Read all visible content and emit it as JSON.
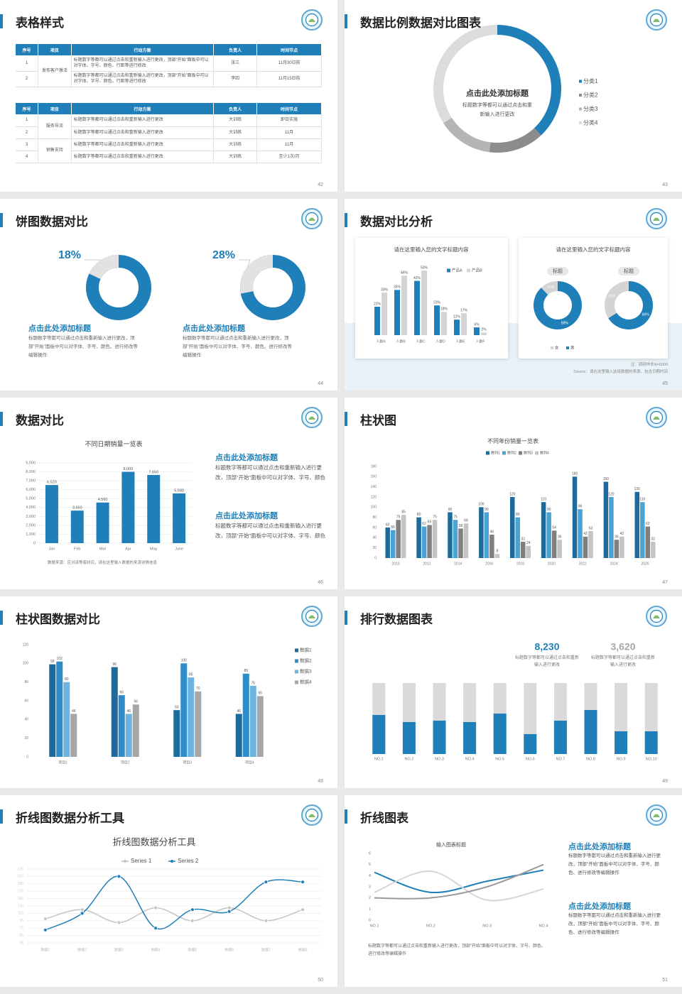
{
  "slides": [
    {
      "title": "表格样式",
      "page": 42,
      "tables": [
        {
          "header": [
            "序号",
            "项目",
            "行动方案",
            "负责人",
            "时间节点"
          ],
          "groups": [
            {
              "item": "发布客户激活",
              "rows": [
                [
                  1,
                  "标题数字等都可以通过点击和重新输入进行更改，顶部“开始”面板中可以对字体、字号、颜色、行距等进行修改",
                  "张三",
                  "11月30日前"
                ],
                [
                  2,
                  "标题数字等都可以通过点击和重新输入进行更改，顶部“开始”面板中可以对字体、字号、颜色、行距等进行修改",
                  "李四",
                  "11月15日前"
                ]
              ]
            }
          ]
        },
        {
          "header": [
            "序号",
            "项目",
            "行动方案",
            "负责人",
            "时间节点"
          ],
          "groups": [
            {
              "item": "服务导流",
              "rows": [
                [
                  1,
                  "标题数字等都可以通过点击和重新输入进行更改",
                  "大训练",
                  "即日实施"
                ],
                [
                  2,
                  "标题数字等都可以通过点击和重新输入进行更改",
                  "大训练",
                  "11月"
                ]
              ]
            },
            {
              "item": "销售支持",
              "rows": [
                [
                  3,
                  "标题数字等都可以通过点击和重新输入进行更改",
                  "大训练",
                  "11月"
                ],
                [
                  4,
                  "标题数字等都可以通过点击和重新输入进行更改",
                  "大训练",
                  "至少1次/月"
                ]
              ]
            }
          ]
        }
      ]
    },
    {
      "title": "数据比例数据对比图表",
      "page": 43,
      "chart": {
        "type": "donut",
        "heading": "点击此处添加标题",
        "body": "标题数字等都可以通过点击和重新输入进行更改",
        "categories": [
          "分类1",
          "分类2",
          "分类3",
          "分类4"
        ],
        "values": [
          38,
          14,
          14,
          34
        ],
        "colors": [
          "#1f7fb8",
          "#8c8c8c",
          "#b5b5b5",
          "#dcdcdc"
        ]
      }
    },
    {
      "title": "饼图数据对比",
      "page": 44,
      "chart": {
        "type": "percent-donut",
        "values": [
          18,
          28
        ],
        "value_labels": [
          "18%",
          "28%"
        ],
        "color": "#1f7fb8",
        "track": "#e2e2e2",
        "headings": [
          "点击此处添加标题",
          "点击此处添加标题"
        ],
        "bodies": [
          "标题数字等都可以通过点击和重新输入进行更改，顶部“开始”面板中可以对字体、字号、颜色、进行修改等编辑操作",
          "标题数字等都可以通过点击和重新输入进行更改，顶部“开始”面板中可以对字体、字号、颜色、进行修改等编辑操作"
        ]
      }
    },
    {
      "title": "数据对比分析",
      "page": 45,
      "charts": [
        {
          "type": "bar",
          "title": "请在这里输入您的文字标题内容",
          "legend": "top",
          "categories": [
            "人群A",
            "人群B",
            "人群C",
            "人群D",
            "人群E",
            "人群F"
          ],
          "series": [
            {
              "name": "产品A",
              "color": "#1f7fb8",
              "values": [
                22,
                35,
                42,
                23,
                12,
                6
              ],
              "value_labels": [
                "22%",
                "35%",
                "42%",
                "23%",
                "12%",
                "6%"
              ]
            },
            {
              "name": "产品B",
              "color": "#d4d4d4",
              "values": [
                33,
                46,
                50,
                18,
                17,
                2
              ],
              "value_labels": [
                "33%",
                "46%",
                "50%",
                "18%",
                "17%",
                "2%"
              ]
            }
          ]
        },
        {
          "type": "donuts",
          "title": "请在这里输入您的文字标题内容",
          "legend": [
            "女",
            "男"
          ],
          "colors": [
            "#d4d4d4",
            "#1f7fb8"
          ],
          "pies": [
            {
              "title": "标题",
              "values": [
                12,
                88
              ],
              "value_labels": [
                "12%",
                "88%"
              ]
            },
            {
              "title": "标题",
              "values": [
                34,
                66
              ],
              "value_labels": [
                "34%",
                "66%"
              ]
            }
          ]
        }
      ],
      "notes": [
        "注：调研样本N=5000",
        "Source：请在这里输入这组数据的来源，包含日期时间"
      ]
    },
    {
      "title": "数据对比",
      "page": 46,
      "chart": {
        "type": "bar",
        "title": "不同日期销量一览表",
        "categories": [
          "Jan",
          "Feb",
          "Mar",
          "Apr",
          "May",
          "June"
        ],
        "values": [
          6520,
          3650,
          4560,
          8000,
          7650,
          5580
        ],
        "value_labels": [
          "6,520",
          "3,650",
          "4,560",
          "8,000",
          "7,650",
          "5,580"
        ],
        "color": "#1f7fb8",
        "ylim": [
          0,
          9000
        ],
        "yticks": [
          0,
          {
            "value": 1000,
            "label": "1,000"
          },
          {
            "value": 2000,
            "label": "2,000"
          },
          {
            "value": 3000,
            "label": "3,000"
          },
          {
            "value": 4000,
            "label": "4,000"
          },
          {
            "value": 5000,
            "label": "5,000"
          },
          {
            "value": 6000,
            "label": "6,000"
          },
          {
            "value": 7000,
            "label": "7,000"
          },
          {
            "value": 8000,
            "label": "8,000"
          },
          {
            "value": 9000,
            "label": "9,000"
          }
        ],
        "grid": true,
        "note": "数据来源：应对该等套研究，请在这里输入数据的来源详情信息"
      },
      "blocks": [
        {
          "heading": "点击此处添加标题",
          "body": "标题数字等都可以通过点击和重新输入进行更改，顶部“开始”面板中可以对字体、字号、颜色"
        },
        {
          "heading": "点击此处添加标题",
          "body": "标题数字等都可以通过点击和重新输入进行更改，顶部“开始”面板中可以对字体、字号、颜色"
        }
      ]
    },
    {
      "title": "柱状图",
      "page": 47,
      "chart": {
        "type": "bar",
        "title": "不同年份销量一览表",
        "legend": "top",
        "categories": [
          "2010",
          "2012",
          "2014",
          "2016",
          "2018",
          "2020",
          "2022",
          "2024",
          "2026"
        ],
        "series": [
          {
            "name": "数列1",
            "color": "#1d6b9c",
            "values": [
              60,
              80,
              90,
              100,
              120,
              110,
              160,
              150,
              130
            ]
          },
          {
            "name": "数列2",
            "color": "#4aa3d5",
            "values": [
              55,
              62,
              75,
              90,
              80,
              90,
              96,
              120,
              110
            ]
          },
          {
            "name": "数列3",
            "color": "#7f7f7f",
            "values": [
              75,
              65,
              58,
              46,
              32,
              54,
              42,
              36,
              62
            ]
          },
          {
            "name": "数列4",
            "color": "#c4c4c4",
            "values": [
              85,
              75,
              68,
              8,
              24,
              36,
              53,
              42,
              32
            ]
          }
        ],
        "ylim": [
          0,
          180
        ],
        "yticks": [
          0,
          20,
          40,
          60,
          80,
          100,
          120,
          140,
          160,
          180
        ]
      }
    },
    {
      "title": "柱状图数据对比",
      "page": 48,
      "chart": {
        "type": "bar",
        "legend": "right",
        "categories": [
          "项目1",
          "项目2",
          "项目3",
          "项目4"
        ],
        "series": [
          {
            "name": "数据1",
            "color": "#1d6b9c",
            "values": [
              99,
              96,
              50,
              46
            ]
          },
          {
            "name": "数据2",
            "color": "#2f8cc6",
            "values": [
              102,
              66,
              100,
              89
            ]
          },
          {
            "name": "数据3",
            "color": "#6db3df",
            "values": [
              80,
              46,
              85,
              76
            ]
          },
          {
            "name": "数据4",
            "color": "#a6a6a6",
            "values": [
              46,
              56,
              70,
              65
            ]
          }
        ],
        "ylim": [
          0,
          120
        ],
        "yticks": [
          0,
          20,
          40,
          60,
          80,
          100,
          120
        ]
      }
    },
    {
      "title": "排行数据图表",
      "page": 49,
      "stats": {
        "values": [
          8230,
          3620
        ],
        "value_labels": [
          "8,230",
          "3,620"
        ],
        "colors": [
          "#1f7fb8",
          "#a6a6a6"
        ],
        "bodies": [
          "标题数字等都可以通过点击和重新输入进行更改",
          "标题数字等都可以通过点击和重新输入进行更改"
        ]
      },
      "chart": {
        "type": "progress",
        "categories": [
          "NO.1",
          "NO.2",
          "NO.3",
          "NO.4",
          "NO.5",
          "NO.6",
          "NO.7",
          "NO.8",
          "NO.9",
          "NO.10"
        ],
        "values": [
          55,
          45,
          47,
          45,
          57,
          28,
          47,
          62,
          32,
          32
        ],
        "ylim": [
          0,
          100
        ],
        "color": "#1f7fb8",
        "track": "#dadada"
      }
    },
    {
      "title": "折线图数据分析工具",
      "page": 50,
      "chart": {
        "type": "line",
        "smooth": true,
        "title": "折线图数据分析工具",
        "legend": "top",
        "categories": [
          "数据1",
          "数据2",
          "数据3",
          "数据4",
          "数据5",
          "数据6",
          "数据7",
          "数据8"
        ],
        "series": [
          {
            "name": "Series 1",
            "color": "#c4c4c4",
            "values": [
              100,
              125,
              90,
              130,
              95,
              130,
              95,
              125
            ]
          },
          {
            "name": "Series 2",
            "color": "#1f7fb8",
            "values": [
              70,
              115,
              215,
              75,
              125,
              120,
              200,
              200
            ]
          }
        ],
        "ylim": [
          35,
          235
        ],
        "yticks": [
          35,
          55,
          75,
          95,
          115,
          135,
          155,
          175,
          195,
          215,
          235
        ],
        "grid": true
      }
    },
    {
      "title": "折线图表",
      "page": 51,
      "chart": {
        "type": "line",
        "smooth": true,
        "title": "输入图表标题",
        "categories": [
          "NO.1",
          "NO.2",
          "NO.3",
          "NO.4"
        ],
        "series": [
          {
            "color": "#1f7fb8",
            "values": [
              4.3,
              2.5,
              3.5,
              4.5
            ]
          },
          {
            "color": "#d6d6d6",
            "values": [
              2.5,
              4.4,
              1.8,
              2.8
            ]
          },
          {
            "color": "#9a9a9a",
            "values": [
              2,
              2,
              3,
              5
            ]
          }
        ],
        "ylim": [
          0,
          6
        ],
        "yticks": [
          0,
          1,
          2,
          3,
          4,
          5,
          6
        ],
        "note": "标题数字等都可以通过点击和重新输入进行更改，顶部“开始”面板中可以对字体、字号、颜色、进行修改等编辑操作"
      },
      "blocks": [
        {
          "heading": "点击此处添加标题",
          "body": "标题数字等都可以通过点击和重新输入进行更改，顶部“开始”面板中可以对字体、字号、颜色、进行修改等编辑操作"
        },
        {
          "heading": "点击此处添加标题",
          "body": "标题数字等都可以通过点击和重新输入进行更改，顶部“开始”面板中可以对字体、字号、颜色、进行修改等编辑操作"
        }
      ]
    }
  ]
}
